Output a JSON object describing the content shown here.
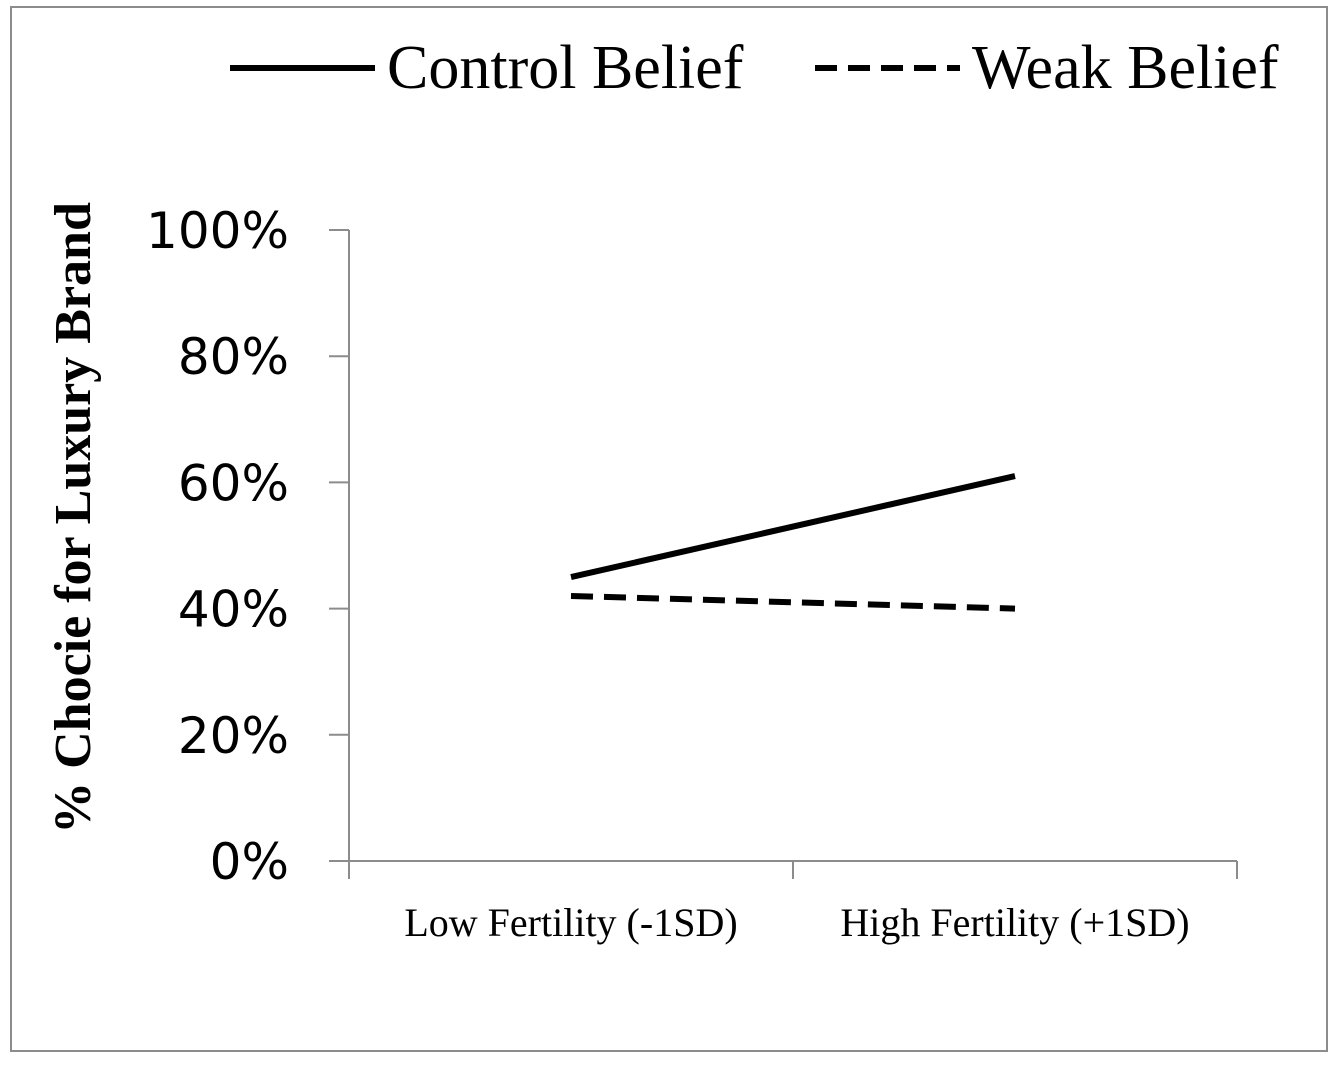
{
  "chart_data": {
    "type": "line",
    "title": "",
    "xlabel": "",
    "ylabel": "% Chocie for Luxury Brand",
    "categories": [
      "Low Fertility (-1SD)",
      "High Fertility (+1SD)"
    ],
    "ylim": [
      0,
      1
    ],
    "yticks": [
      "0%",
      "20%",
      "40%",
      "60%",
      "80%",
      "100%"
    ],
    "ytick_values": [
      0,
      0.2,
      0.4,
      0.6,
      0.8,
      1.0
    ],
    "grid": false,
    "legend_position": "top",
    "series": [
      {
        "name": "Control Belief",
        "values": [
          0.45,
          0.61
        ],
        "style": "solid",
        "color": "#000000"
      },
      {
        "name": "Weak Belief",
        "values": [
          0.42,
          0.4
        ],
        "style": "dashed",
        "color": "#000000"
      }
    ]
  }
}
